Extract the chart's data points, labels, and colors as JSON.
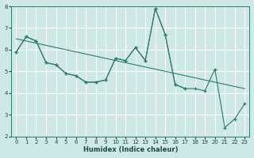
{
  "xlabel": "Humidex (Indice chaleur)",
  "x_values": [
    0,
    1,
    2,
    3,
    4,
    5,
    6,
    7,
    8,
    9,
    10,
    11,
    12,
    13,
    14,
    15,
    16,
    17,
    18,
    19,
    20,
    21,
    22,
    23
  ],
  "line_main_y": [
    5.9,
    6.6,
    6.4,
    5.4,
    5.3,
    4.9,
    4.8,
    4.5,
    4.5,
    4.6,
    5.6,
    5.5,
    6.1,
    5.5,
    7.9,
    6.7,
    4.4,
    4.2,
    4.2,
    4.1,
    5.1,
    2.4,
    2.8,
    3.5
  ],
  "line_short_y": [
    5.9,
    6.6,
    6.4,
    5.4,
    5.3,
    4.9,
    4.8,
    4.5,
    4.5,
    4.6,
    5.6,
    5.5,
    6.1,
    5.5,
    7.9,
    6.7,
    4.4,
    4.2,
    null,
    null,
    null,
    null,
    null,
    null
  ],
  "line_trend_y": [
    6.5,
    6.4,
    6.3,
    6.2,
    6.1,
    6.0,
    5.9,
    5.8,
    5.7,
    5.6,
    5.5,
    5.4,
    5.3,
    5.2,
    5.1,
    5.0,
    4.9,
    4.8,
    4.7,
    4.6,
    4.5,
    4.4,
    4.3,
    4.2
  ],
  "bg_color": "#cde8e5",
  "grid_color": "#ffffff",
  "line_color": "#2d7a6e",
  "ylim": [
    2,
    8
  ],
  "xlim": [
    -0.5,
    23.5
  ],
  "yticks": [
    2,
    3,
    4,
    5,
    6,
    7,
    8
  ],
  "xticks": [
    0,
    1,
    2,
    3,
    4,
    5,
    6,
    7,
    8,
    9,
    10,
    11,
    12,
    13,
    14,
    15,
    16,
    17,
    18,
    19,
    20,
    21,
    22,
    23
  ]
}
